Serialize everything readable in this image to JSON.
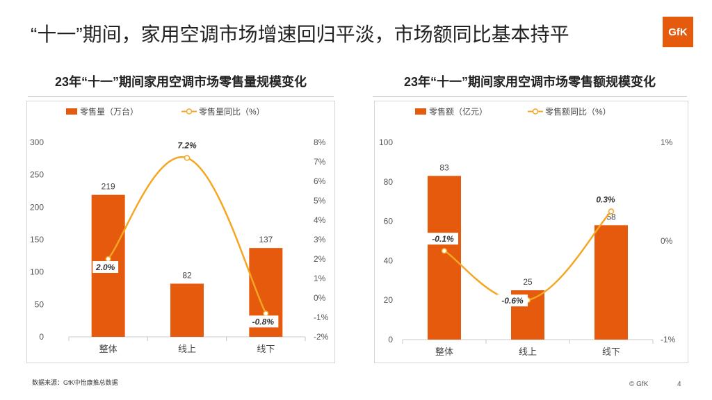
{
  "page": {
    "title": "“十一”期间，家用空调市场增速回归平淡，市场额同比基本持平",
    "logo_text": "GfK",
    "source_note": "数据来源：GfK中怡康推总数据",
    "copyright": "© GfK",
    "page_number": "4"
  },
  "colors": {
    "bar": "#E55A0C",
    "line": "#F5A623",
    "accent": "#E55A0C"
  },
  "chart_data": [
    {
      "type": "bar",
      "title": "23年“十一”期间家用空调市场零售量规模变化",
      "categories": [
        "整体",
        "线上",
        "线下"
      ],
      "series": [
        {
          "name": "零售量（万台）",
          "type": "bar",
          "axis": "left",
          "values": [
            219,
            82,
            137
          ]
        },
        {
          "name": "零售量同比（%）",
          "type": "line",
          "axis": "right",
          "values": [
            2.0,
            7.2,
            -0.8
          ]
        }
      ],
      "bar_labels": [
        "219",
        "82",
        "137"
      ],
      "line_labels": [
        "2.0%",
        "7.2%",
        "-0.8%"
      ],
      "left_ticks": [
        "0",
        "50",
        "100",
        "150",
        "200",
        "250",
        "300"
      ],
      "right_ticks": [
        "-2%",
        "-1%",
        "0%",
        "1%",
        "2%",
        "3%",
        "4%",
        "5%",
        "6%",
        "7%",
        "8%"
      ],
      "ylim_left": [
        0,
        300
      ],
      "ylim_right": [
        -2,
        8
      ],
      "legend_position": "top"
    },
    {
      "type": "bar",
      "title": "23年“十一”期间家用空调市场零售额规模变化",
      "categories": [
        "整体",
        "线上",
        "线下"
      ],
      "series": [
        {
          "name": "零售额（亿元）",
          "type": "bar",
          "axis": "left",
          "values": [
            83,
            25,
            58
          ]
        },
        {
          "name": "零售额同比（%）",
          "type": "line",
          "axis": "right",
          "values": [
            -0.1,
            -0.6,
            0.3
          ]
        }
      ],
      "bar_labels": [
        "83",
        "25",
        "58"
      ],
      "line_labels": [
        "-0.1%",
        "-0.6%",
        "0.3%"
      ],
      "left_ticks": [
        "0",
        "20",
        "40",
        "60",
        "80",
        "100"
      ],
      "right_ticks": [
        "-1%",
        "0%",
        "1%"
      ],
      "ylim_left": [
        0,
        100
      ],
      "ylim_right": [
        -1,
        1
      ],
      "legend_position": "top"
    }
  ]
}
